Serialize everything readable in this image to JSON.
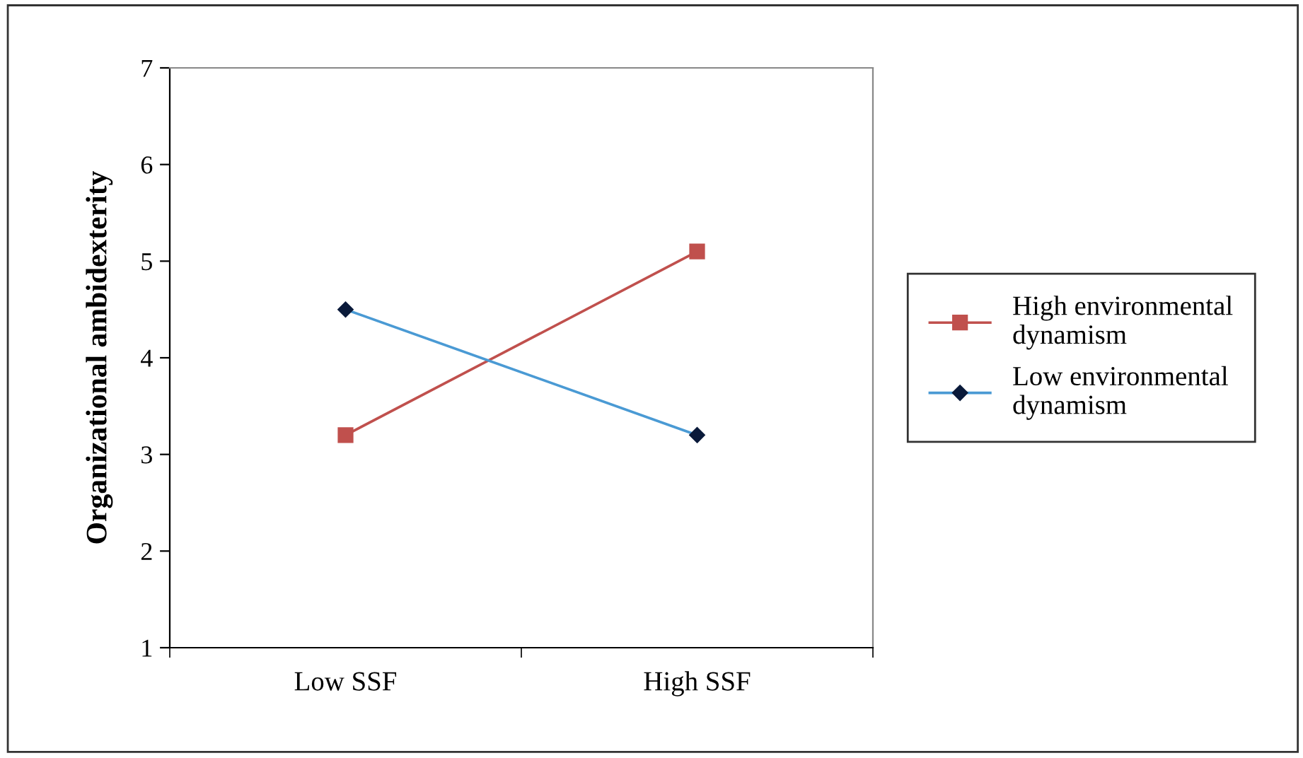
{
  "chart_data": {
    "type": "line",
    "ylabel": "Organizational ambidexterity",
    "categories": [
      "Low SSF",
      "High SSF"
    ],
    "series": [
      {
        "name": "High environmental\ndynamism",
        "color": "#c0504d",
        "marker": "square",
        "values": [
          3.2,
          5.1
        ]
      },
      {
        "name": "Low environmental\ndynamism",
        "color": "#4a9ad4",
        "marker": "diamond",
        "values": [
          4.5,
          3.2
        ]
      }
    ],
    "ylim": [
      1,
      7
    ],
    "yticks": [
      1,
      2,
      3,
      4,
      5,
      6,
      7
    ],
    "grid": false,
    "legend": "right",
    "line_style": "solid"
  }
}
